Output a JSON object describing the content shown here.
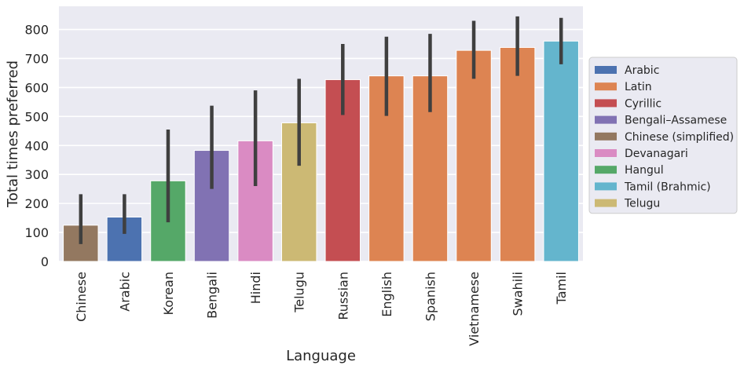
{
  "chart_data": {
    "type": "bar",
    "title": "",
    "xlabel": "Language",
    "ylabel": "Total times preferred",
    "ylim": [
      0,
      880
    ],
    "yticks": [
      0,
      100,
      200,
      300,
      400,
      500,
      600,
      700,
      800
    ],
    "grid": true,
    "legend_position": "right",
    "categories": [
      "Chinese",
      "Arabic",
      "Korean",
      "Bengali",
      "Hindi",
      "Telugu",
      "Russian",
      "English",
      "Spanish",
      "Vietnamese",
      "Swahili",
      "Tamil"
    ],
    "values": [
      125,
      153,
      278,
      383,
      416,
      478,
      627,
      640,
      640,
      728,
      738,
      760
    ],
    "error_low": [
      60,
      95,
      135,
      250,
      260,
      330,
      505,
      502,
      515,
      630,
      640,
      680
    ],
    "error_high": [
      232,
      232,
      455,
      537,
      590,
      630,
      750,
      775,
      785,
      830,
      845,
      840
    ],
    "scripts": [
      "Chinese (simplified)",
      "Arabic",
      "Hangul",
      "Bengali–Assamese",
      "Devanagari",
      "Telugu",
      "Cyrillic",
      "Latin",
      "Latin",
      "Latin",
      "Latin",
      "Tamil (Brahmic)"
    ],
    "legend": [
      {
        "label": "Arabic",
        "color": "#4c72b0"
      },
      {
        "label": "Latin",
        "color": "#dd8452"
      },
      {
        "label": "Cyrillic",
        "color": "#c44e52"
      },
      {
        "label": "Bengali–Assamese",
        "color": "#8172b3"
      },
      {
        "label": "Chinese (simplified)",
        "color": "#937860"
      },
      {
        "label": "Devanagari",
        "color": "#da8bc3"
      },
      {
        "label": "Hangul",
        "color": "#55a868"
      },
      {
        "label": "Tamil (Brahmic)",
        "color": "#64b5cd"
      },
      {
        "label": "Telugu",
        "color": "#ccb974"
      }
    ]
  }
}
